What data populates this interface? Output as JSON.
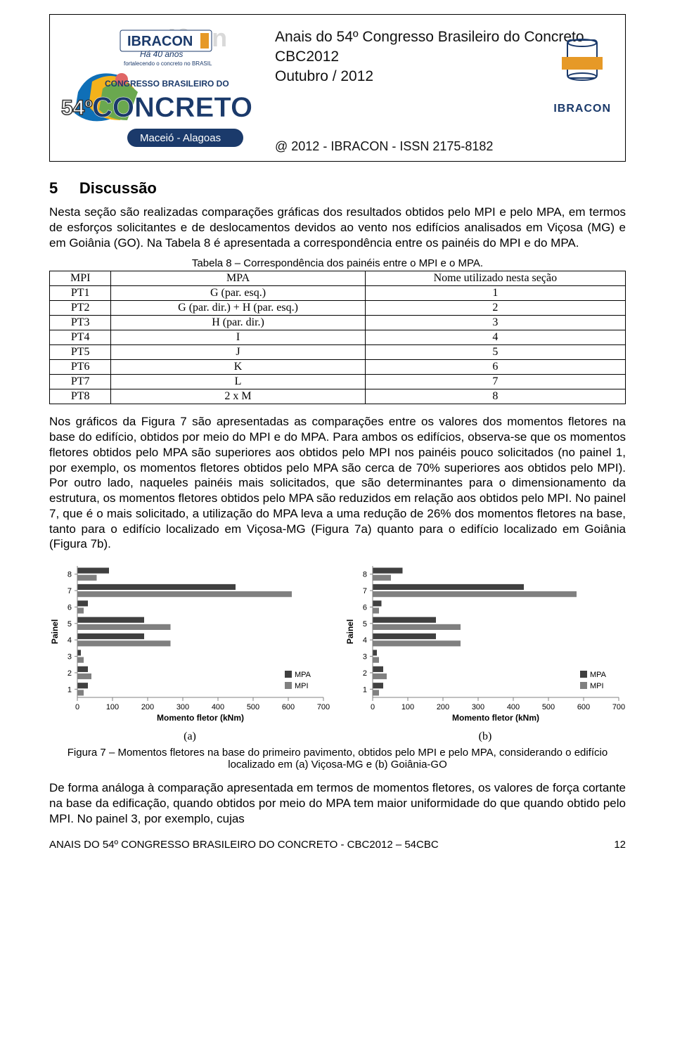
{
  "banner": {
    "title_lines": [
      "Anais do 54º Congresso Brasileiro do Concreto",
      "CBC2012",
      "Outubro / 2012"
    ],
    "issn_line": "@ 2012 - IBRACON - ISSN 2175-8182",
    "right_label": "IBRACON",
    "left_top_brand": "IBRACON",
    "left_tag": "Há 40 anos",
    "left_sub": "fortalecendo o concreto no BRASIL",
    "left_congress_top": "CONGRESSO BRASILEIRO DO",
    "left_congress_big": "CONCRETO",
    "left_city": "Maceió - Alagoas",
    "left_number": "54º",
    "left_faded": "40 an"
  },
  "section": {
    "number": "5",
    "title": "Discussão"
  },
  "para1": "Nesta seção são realizadas comparações gráficas dos resultados obtidos pelo MPI e pelo MPA, em termos de esforços solicitantes e de deslocamentos devidos ao vento nos edifícios analisados em Viçosa (MG) e em Goiânia (GO). Na Tabela 8 é apresentada a correspondência entre os painéis do MPI e do MPA.",
  "table8": {
    "caption": "Tabela 8 – Correspondência dos painéis entre o MPI e o MPA.",
    "columns": [
      "MPI",
      "MPA",
      "Nome utilizado nesta seção"
    ],
    "rows": [
      [
        "PT1",
        "G (par. esq.)",
        "1"
      ],
      [
        "PT2",
        "G (par. dir.) + H (par. esq.)",
        "2"
      ],
      [
        "PT3",
        "H (par. dir.)",
        "3"
      ],
      [
        "PT4",
        "I",
        "4"
      ],
      [
        "PT5",
        "J",
        "5"
      ],
      [
        "PT6",
        "K",
        "6"
      ],
      [
        "PT7",
        "L",
        "7"
      ],
      [
        "PT8",
        "2 x M",
        "8"
      ]
    ],
    "border_color": "#000000",
    "font_family": "Times New Roman",
    "font_size_pt": 12
  },
  "para2": "Nos gráficos da Figura 7 são apresentadas as comparações entre os valores dos momentos fletores na base do edifício, obtidos por meio do MPI e do MPA. Para ambos os edifícios, observa-se que os momentos fletores obtidos pelo MPA são superiores aos obtidos pelo MPI nos painéis pouco solicitados (no painel 1, por exemplo, os momentos fletores obtidos pelo MPA são cerca de 70% superiores aos obtidos pelo MPI). Por outro lado, naqueles painéis mais solicitados, que são determinantes para o dimensionamento da estrutura, os momentos fletores obtidos pelo MPA são reduzidos em relação aos obtidos pelo MPI. No painel 7, que é o mais solicitado, a utilização do MPA leva a uma redução de 26% dos momentos fletores na base, tanto para o edifício localizado em Viçosa-MG (Figura 7a) quanto para o edifício localizado em Goiânia (Figura 7b).",
  "charts": {
    "type": "grouped-horizontal-bar",
    "categories": [
      "1",
      "2",
      "3",
      "4",
      "5",
      "6",
      "7",
      "8"
    ],
    "series_names": [
      "MPA",
      "MPI"
    ],
    "series_colors": {
      "MPA": "#404040",
      "MPI": "#808080"
    },
    "xlabel": "Momento fletor (kNm)",
    "ylabel": "Painel",
    "xlim": [
      0,
      700
    ],
    "xtick_step": 100,
    "bar_group_height": 1.0,
    "bar_height": 0.35,
    "grid_color": "#bfbfbf",
    "axis_color": "#808080",
    "background_color": "#ffffff",
    "legend_position": "bottom-right-inside",
    "label_fontsize": 11,
    "title_fontsize": 12,
    "chart_a": {
      "sub_label": "(a)",
      "MPA": [
        30,
        30,
        10,
        190,
        190,
        30,
        450,
        90
      ],
      "MPI": [
        18,
        40,
        18,
        265,
        265,
        18,
        610,
        55
      ]
    },
    "chart_b": {
      "sub_label": "(b)",
      "MPA": [
        30,
        30,
        12,
        180,
        180,
        25,
        430,
        85
      ],
      "MPI": [
        18,
        40,
        18,
        250,
        250,
        18,
        580,
        52
      ]
    }
  },
  "fig7_caption": "Figura 7 – Momentos fletores na base do primeiro pavimento, obtidos pelo MPI e pelo MPA, considerando o edifício localizado em (a) Viçosa-MG e (b) Goiânia-GO",
  "para3": "De forma análoga à comparação apresentada em termos de momentos fletores, os valores de força cortante na base da edificação, quando obtidos por meio do MPA tem maior uniformidade do que quando obtido pelo MPI. No painel 3, por exemplo, cujas",
  "footer": {
    "left": "ANAIS DO 54º CONGRESSO BRASILEIRO DO CONCRETO - CBC2012 – 54CBC",
    "page": "12"
  }
}
